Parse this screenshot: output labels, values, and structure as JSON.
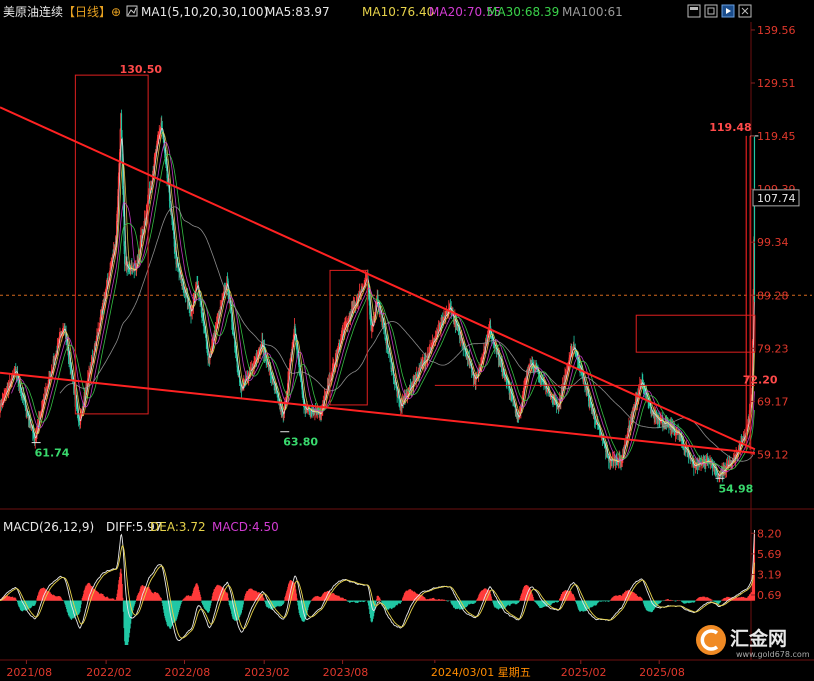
{
  "header": {
    "title": "美原油连续",
    "period": "【日线】",
    "zoom_symbol": "⊕",
    "ma_params": "MA1(5,10,20,30,100)",
    "ma5": "MA5:83.97",
    "ma10": "MA10:76.40",
    "ma20": "MA20:70.55",
    "ma30": "MA30:68.39",
    "ma100": "MA100:61"
  },
  "macd_header": {
    "params": "MACD(26,12,9)",
    "diff": "DIFF:5.97",
    "dea": "DEA:3.72",
    "macd": "MACD:4.50"
  },
  "toolbar_icons": [
    "window-icon",
    "restore-icon",
    "next-icon",
    "close-icon"
  ],
  "watermark": {
    "brand": "汇金网",
    "url": "www.gold678.com"
  },
  "colors": {
    "background": "#000000",
    "up": "#ff3b3b",
    "down": "#21c7a4",
    "trendline": "#ff2222",
    "ma5": "#e8e8e8",
    "ma10": "#e6d24a",
    "ma20": "#d23cd2",
    "ma30": "#3ad24a",
    "ma100": "#9a9a9a",
    "axis_text": "#e0382c",
    "date_text": "#e0382c",
    "green_label": "#39d96d",
    "red_label": "#ff4a4a",
    "cursor_date": "#ff8c00"
  },
  "chart_data": [
    {
      "type": "candlestick",
      "title": "美原油连续",
      "y_ticks": [
        139.56,
        129.51,
        119.45,
        109.39,
        99.34,
        89.28,
        79.23,
        69.17,
        59.12
      ],
      "ylim": [
        52,
        140.5
      ],
      "x_ticks": [
        "2021/08",
        "2022/02",
        "2022/08",
        "2023/02",
        "2023/08",
        "2024/03/01 星期五",
        "2025/02",
        "2025/08"
      ],
      "x_range": [
        "2021-06",
        "2026-03"
      ],
      "last_price": 107.74,
      "reference_line": 89.28,
      "annotations": [
        {
          "label": "130.50",
          "date": "2022-03-07",
          "value": 130.5,
          "kind": "high"
        },
        {
          "label": "61.74",
          "date": "2021-08-20",
          "value": 61.74,
          "kind": "low"
        },
        {
          "label": "63.80",
          "date": "2023-03-17",
          "value": 63.8,
          "kind": "low"
        },
        {
          "label": "54.98",
          "date": "2025-12-16",
          "value": 54.98,
          "kind": "low"
        },
        {
          "label": "119.48",
          "date": "2026-03-09",
          "value": 119.48,
          "kind": "high"
        },
        {
          "label": "72.20",
          "date": "2026-03-05",
          "value": 72.2,
          "kind": "level"
        }
      ],
      "anchor_points": [
        [
          "2021-06-01",
          68
        ],
        [
          "2021-07-06",
          75
        ],
        [
          "2021-08-20",
          62
        ],
        [
          "2021-09-15",
          71
        ],
        [
          "2021-10-26",
          84
        ],
        [
          "2021-12-01",
          65
        ],
        [
          "2022-01-15",
          83
        ],
        [
          "2022-02-24",
          100
        ],
        [
          "2022-03-07",
          123
        ],
        [
          "2022-03-16",
          95
        ],
        [
          "2022-04-11",
          94
        ],
        [
          "2022-06-08",
          122
        ],
        [
          "2022-07-14",
          95
        ],
        [
          "2022-08-16",
          86
        ],
        [
          "2022-08-30",
          92
        ],
        [
          "2022-09-26",
          77
        ],
        [
          "2022-11-07",
          92
        ],
        [
          "2022-12-09",
          71
        ],
        [
          "2023-01-27",
          80
        ],
        [
          "2023-03-17",
          66
        ],
        [
          "2023-04-12",
          83
        ],
        [
          "2023-05-04",
          68
        ],
        [
          "2023-06-12",
          67
        ],
        [
          "2023-08-01",
          82
        ],
        [
          "2023-09-27",
          93
        ],
        [
          "2023-10-06",
          82
        ],
        [
          "2023-10-20",
          89
        ],
        [
          "2023-12-12",
          68
        ],
        [
          "2024-02-01",
          76
        ],
        [
          "2024-04-05",
          87
        ],
        [
          "2024-06-04",
          73
        ],
        [
          "2024-07-05",
          83
        ],
        [
          "2024-09-10",
          66
        ],
        [
          "2024-10-07",
          77
        ],
        [
          "2024-12-10",
          68
        ],
        [
          "2025-01-15",
          80
        ],
        [
          "2025-03-05",
          66
        ],
        [
          "2025-04-08",
          58
        ],
        [
          "2025-05-05",
          58
        ],
        [
          "2025-06-20",
          73
        ],
        [
          "2025-07-15",
          67
        ],
        [
          "2025-09-15",
          63
        ],
        [
          "2025-10-20",
          57
        ],
        [
          "2025-11-25",
          58
        ],
        [
          "2025-12-16",
          55
        ],
        [
          "2026-01-20",
          58
        ],
        [
          "2026-02-20",
          64
        ],
        [
          "2026-03-03",
          70
        ],
        [
          "2026-03-06",
          90
        ],
        [
          "2026-03-09",
          108
        ]
      ],
      "trendlines": [
        {
          "name": "upper",
          "from": [
            "2021-06-01",
            124.9
          ],
          "to": [
            "2026-03-10",
            60.1
          ]
        },
        {
          "name": "lower",
          "from": [
            "2021-06-01",
            74.6
          ],
          "to": [
            "2026-03-10",
            59.4
          ]
        }
      ],
      "boxes": [
        {
          "from": "2021-11-22",
          "to": "2022-05-09",
          "y_top": 131,
          "y_bottom": 66.8
        },
        {
          "from": "2023-07-03",
          "to": "2023-09-27",
          "y_top": 94,
          "y_bottom": 68.5
        },
        {
          "from": "2025-06-09",
          "to": "2026-03-10",
          "y_top": 85.5,
          "y_bottom": 78.5
        }
      ],
      "vertical_markers": [
        {
          "date": "2026-02-18",
          "y_bottom": 60,
          "y_top": 119.5
        },
        {
          "date": "2026-02-27",
          "y_bottom": 60,
          "y_top": 119.5
        }
      ],
      "horizontal_levels": [
        {
          "value": 72.2,
          "from": "2024-03-01",
          "to": "2026-03-10"
        }
      ]
    },
    {
      "type": "bar",
      "title": "MACD(26,12,9)",
      "y_ticks": [
        8.2,
        5.69,
        3.19,
        0.69
      ],
      "ylim": [
        -5.4,
        8.6
      ],
      "series": [
        {
          "name": "DIFF",
          "last": 5.97
        },
        {
          "name": "DEA",
          "last": 3.72
        },
        {
          "name": "MACD",
          "last": 4.5
        }
      ]
    }
  ]
}
